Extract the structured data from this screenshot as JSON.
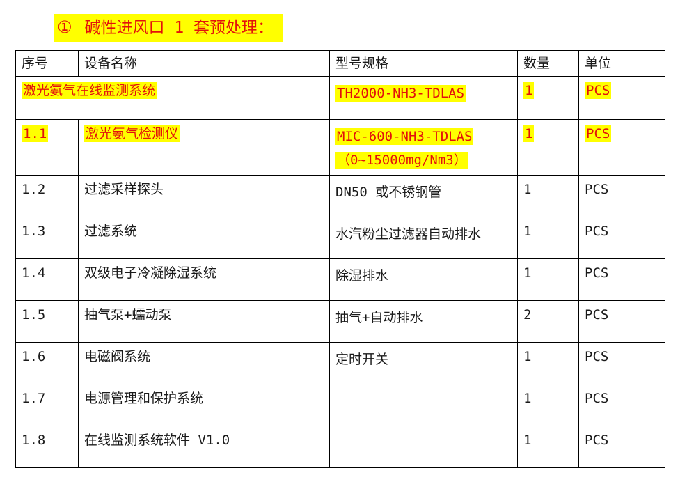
{
  "title": {
    "number": "①",
    "text": "碱性进风口 1 套预处理："
  },
  "table": {
    "headers": [
      "序号",
      "设备名称",
      "型号规格",
      "数量",
      "单位"
    ],
    "rows": [
      {
        "no": "",
        "name": "激光氨气在线监测系统",
        "spec": [
          "TH2000-NH3-TDLAS"
        ],
        "qty": "1",
        "unit": "PCS",
        "highlight": true,
        "merged": true
      },
      {
        "no": "1.1",
        "name": "激光氨气检测仪",
        "spec": [
          "MIC-600-NH3-TDLAS",
          "（0~15000mg/Nm3）"
        ],
        "qty": "1",
        "unit": "PCS",
        "highlight": true,
        "merged": false
      },
      {
        "no": "1.2",
        "name": "过滤采样探头",
        "spec": [
          "DN50 或不锈钢管"
        ],
        "qty": "1",
        "unit": "PCS",
        "highlight": false,
        "merged": false
      },
      {
        "no": "1.3",
        "name": "过滤系统",
        "spec": [
          "水汽粉尘过滤器自动排水"
        ],
        "qty": "1",
        "unit": "PCS",
        "highlight": false,
        "merged": false
      },
      {
        "no": "1.4",
        "name": "双级电子冷凝除湿系统",
        "spec": [
          "除湿排水"
        ],
        "qty": "1",
        "unit": "PCS",
        "highlight": false,
        "merged": false
      },
      {
        "no": "1.5",
        "name": "抽气泵+蠕动泵",
        "spec": [
          "抽气+自动排水"
        ],
        "qty": "2",
        "unit": "PCS",
        "highlight": false,
        "merged": false
      },
      {
        "no": "1.6",
        "name": "电磁阀系统",
        "spec": [
          "定时开关"
        ],
        "qty": "1",
        "unit": "PCS",
        "highlight": false,
        "merged": false
      },
      {
        "no": "1.7",
        "name": "电源管理和保护系统",
        "spec": [],
        "qty": "1",
        "unit": "PCS",
        "highlight": false,
        "merged": false
      },
      {
        "no": "1.8",
        "name": "在线监测系统软件 V1.0",
        "spec": [],
        "qty": "1",
        "unit": "PCS",
        "highlight": false,
        "merged": false
      }
    ]
  },
  "colors": {
    "highlight": "#ffff00",
    "highlight_text": "#e3120b",
    "border": "#000000",
    "text": "#1a1a1a"
  }
}
